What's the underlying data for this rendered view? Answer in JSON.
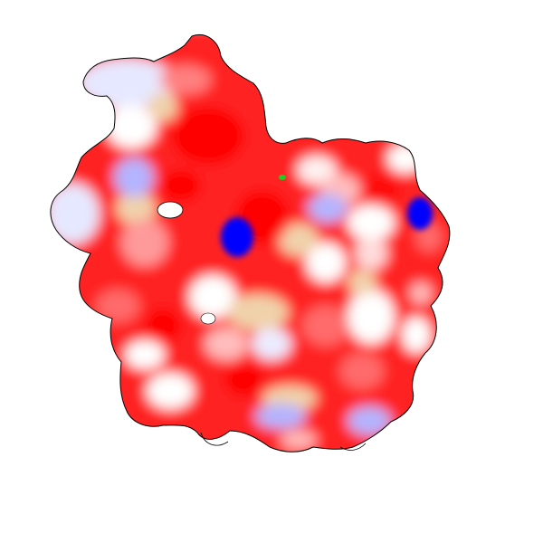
{
  "image": {
    "subject": "protein-molecular-surface",
    "background_color": "#ffffff",
    "outline_color": "#000000",
    "surface_palette": {
      "strong_negative": "#ff0000",
      "negative": "#ff5a5a",
      "weak_negative": "#ffbcbc",
      "neutral": "#ffffff",
      "hydrophobic": "#f0d2aa",
      "weak_positive": "#b4b4ff",
      "faint_positive": "#e6e8ff",
      "strong_positive": "#0000ff",
      "ligand_marker": "#22cc22"
    }
  }
}
